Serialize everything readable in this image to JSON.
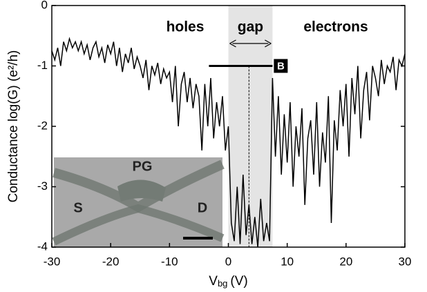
{
  "chart_data": {
    "type": "line",
    "ylabel": "Conductance log(G) (e²/h)",
    "xlabel_main": "V",
    "xlabel_sub": "bg",
    "xlabel_unit": "(V)",
    "xlim": [
      -30,
      30
    ],
    "ylim": [
      -4,
      0
    ],
    "xticks": [
      -30,
      -20,
      -10,
      0,
      10,
      20,
      30
    ],
    "yticks": [
      -4,
      -3,
      -2,
      -1,
      0
    ],
    "annotations": [
      "holes",
      "gap",
      "electrons"
    ],
    "marker_label": "B",
    "inset_labels": [
      "PG",
      "S",
      "D"
    ],
    "shade": [
      0,
      7.5
    ],
    "marker_line": {
      "x": [
        -3.3,
        7.5
      ],
      "y": -1
    },
    "dotted_x": 3.5,
    "series": [
      {
        "color": "#000000",
        "x": [
          -30,
          -29.5,
          -29,
          -28.5,
          -28,
          -27.5,
          -27,
          -26.5,
          -26,
          -25.5,
          -25,
          -24.5,
          -24,
          -23.5,
          -23,
          -22.5,
          -22,
          -21.5,
          -21,
          -20.5,
          -20,
          -19.5,
          -19,
          -18.5,
          -18,
          -17.5,
          -17,
          -16.5,
          -16,
          -15.5,
          -15,
          -14.5,
          -14,
          -13.5,
          -13,
          -12.5,
          -12,
          -11.5,
          -11,
          -10.5,
          -10,
          -9.5,
          -9,
          -8.5,
          -8,
          -7.5,
          -7,
          -6.5,
          -6,
          -5.5,
          -5,
          -4.5,
          -4,
          -3.5,
          -3,
          -2.5,
          -2,
          -1.5,
          -1,
          -0.5,
          0,
          0.5,
          1,
          1.5,
          2,
          2.5,
          3,
          3.5,
          4,
          4.5,
          5,
          5.5,
          6,
          6.5,
          7,
          7.5,
          8,
          8.5,
          9,
          9.5,
          10,
          10.5,
          11,
          11.5,
          12,
          12.5,
          13,
          13.5,
          14,
          14.5,
          15,
          15.5,
          16,
          16.5,
          17,
          17.5,
          18,
          18.5,
          19,
          19.5,
          20,
          20.5,
          21,
          21.5,
          22,
          22.5,
          23,
          23.5,
          24,
          24.5,
          25,
          25.5,
          26,
          26.5,
          27,
          27.5,
          28,
          28.5,
          29,
          29.5,
          30
        ],
        "values": [
          -0.75,
          -0.9,
          -0.7,
          -1.0,
          -0.6,
          -0.75,
          -0.55,
          -0.7,
          -0.6,
          -0.75,
          -0.6,
          -0.8,
          -0.65,
          -0.9,
          -0.7,
          -0.6,
          -0.85,
          -0.7,
          -0.95,
          -0.65,
          -0.8,
          -0.6,
          -1.0,
          -0.7,
          -1.1,
          -0.8,
          -0.95,
          -0.7,
          -1.05,
          -0.85,
          -1.0,
          -1.2,
          -0.9,
          -1.4,
          -1.0,
          -1.15,
          -0.95,
          -1.3,
          -1.05,
          -1.2,
          -1.1,
          -1.6,
          -1.0,
          -2.0,
          -1.3,
          -1.1,
          -1.6,
          -1.2,
          -1.7,
          -1.3,
          -1.5,
          -2.4,
          -1.3,
          -2.0,
          -1.2,
          -2.2,
          -1.6,
          -2.0,
          -1.5,
          -2.4,
          -2.0,
          -3.6,
          -3.9,
          -3.0,
          -3.95,
          -2.8,
          -3.8,
          -3.3,
          -3.95,
          -3.5,
          -4.0,
          -3.2,
          -3.9,
          -3.6,
          -3.9,
          -1.2,
          -2.5,
          -1.5,
          -2.8,
          -1.8,
          -2.6,
          -1.6,
          -3.0,
          -2.0,
          -2.5,
          -1.7,
          -3.3,
          -2.2,
          -1.9,
          -2.8,
          -1.6,
          -3.0,
          -2.1,
          -2.6,
          -1.5,
          -3.6,
          -1.9,
          -2.4,
          -1.4,
          -2.0,
          -1.3,
          -2.5,
          -1.2,
          -1.8,
          -1.0,
          -2.2,
          -1.4,
          -1.1,
          -1.9,
          -1.0,
          -1.2,
          -1.5,
          -0.9,
          -1.3,
          -1.0,
          -1.1,
          -0.85,
          -1.4,
          -0.9,
          -1.0,
          -0.8
        ]
      }
    ]
  }
}
